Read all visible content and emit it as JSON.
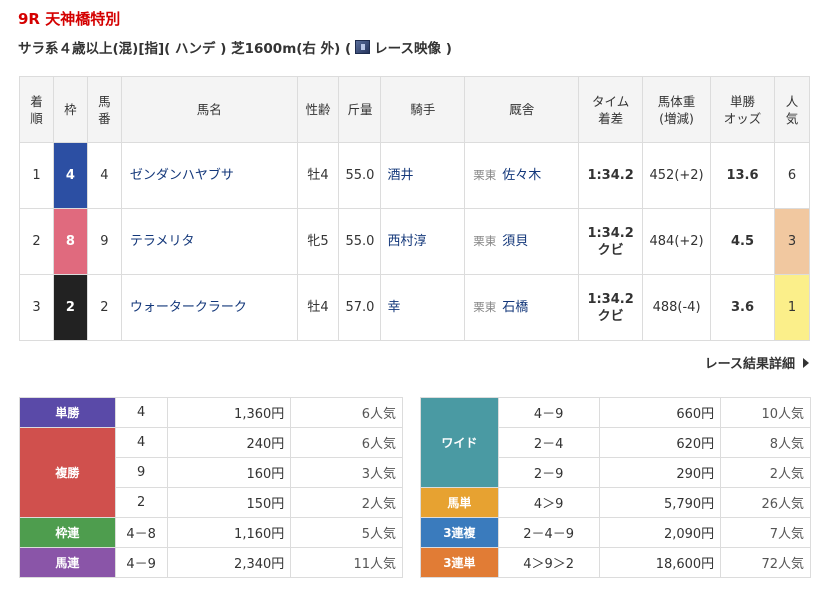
{
  "race": {
    "title": "9R 天神橋特別",
    "condition_prefix": "サラ系４歳以上(混)[指]( ハンデ ) 芝1600m(右 外) (",
    "video_label": " レース映像 )"
  },
  "headers": {
    "rank": [
      "着",
      "順"
    ],
    "waku": "枠",
    "umaban": [
      "馬",
      "番"
    ],
    "horse": "馬名",
    "sexage": "性齢",
    "weight": "斤量",
    "jockey": "騎手",
    "trainer": "厩舎",
    "time": [
      "タイム",
      "着差"
    ],
    "body": [
      "馬体重",
      "(増減)"
    ],
    "odds": [
      "単勝",
      "オッズ"
    ],
    "popularity": [
      "人",
      "気"
    ]
  },
  "rows": [
    {
      "rank": "1",
      "waku": "4",
      "umaban": "4",
      "horse": "ゼンダンハヤブサ",
      "sexage": "牡4",
      "weight": "55.0",
      "jockey": "酒井",
      "trainer_loc": "栗東",
      "trainer": "佐々木",
      "time": "1:34.2",
      "margin": "",
      "body": "452(+2)",
      "odds": "13.6",
      "popularity": "6"
    },
    {
      "rank": "2",
      "waku": "8",
      "umaban": "9",
      "horse": "テラメリタ",
      "sexage": "牝5",
      "weight": "55.0",
      "jockey": "西村淳",
      "trainer_loc": "栗東",
      "trainer": "須貝",
      "time": "1:34.2",
      "margin": "クビ",
      "body": "484(+2)",
      "odds": "4.5",
      "popularity": "3"
    },
    {
      "rank": "3",
      "waku": "2",
      "umaban": "2",
      "horse": "ウォータークラーク",
      "sexage": "牡4",
      "weight": "57.0",
      "jockey": "幸",
      "trainer_loc": "栗東",
      "trainer": "石橋",
      "time": "1:34.2",
      "margin": "クビ",
      "body": "488(-4)",
      "odds": "3.6",
      "popularity": "1"
    }
  ],
  "detail_link": "レース結果詳細",
  "payouts": {
    "tansho": {
      "label": "単勝",
      "entries": [
        {
          "combo": "4",
          "amount": "1,360円",
          "pop": "6人気"
        }
      ]
    },
    "fukusho": {
      "label": "複勝",
      "entries": [
        {
          "combo": "4",
          "amount": "240円",
          "pop": "6人気"
        },
        {
          "combo": "9",
          "amount": "160円",
          "pop": "3人気"
        },
        {
          "combo": "2",
          "amount": "150円",
          "pop": "2人気"
        }
      ]
    },
    "wakuren": {
      "label": "枠連",
      "entries": [
        {
          "combo": "4－8",
          "amount": "1,160円",
          "pop": "5人気"
        }
      ]
    },
    "umaren": {
      "label": "馬連",
      "entries": [
        {
          "combo": "4－9",
          "amount": "2,340円",
          "pop": "11人気"
        }
      ]
    },
    "wide": {
      "label": "ワイド",
      "entries": [
        {
          "combo": "4－9",
          "amount": "660円",
          "pop": "10人気"
        },
        {
          "combo": "2－4",
          "amount": "620円",
          "pop": "8人気"
        },
        {
          "combo": "2－9",
          "amount": "290円",
          "pop": "2人気"
        }
      ]
    },
    "umatan": {
      "label": "馬単",
      "entries": [
        {
          "combo": "4＞9",
          "amount": "5,790円",
          "pop": "26人気"
        }
      ]
    },
    "sanrenpuku": {
      "label": "3連複",
      "entries": [
        {
          "combo": "2－4－9",
          "amount": "2,090円",
          "pop": "7人気"
        }
      ]
    },
    "sanrentan": {
      "label": "3連単",
      "entries": [
        {
          "combo": "4＞9＞2",
          "amount": "18,600円",
          "pop": "72人気"
        }
      ]
    }
  },
  "colors": {
    "title_red": "#d40000",
    "link_blue": "#13377a",
    "waku_4": "#2c4fa3",
    "waku_8": "#e06a7e",
    "waku_2": "#222222"
  },
  "icons": {
    "video": "video-thumbnail-icon",
    "detail_arrow": "triangle-right-icon"
  }
}
